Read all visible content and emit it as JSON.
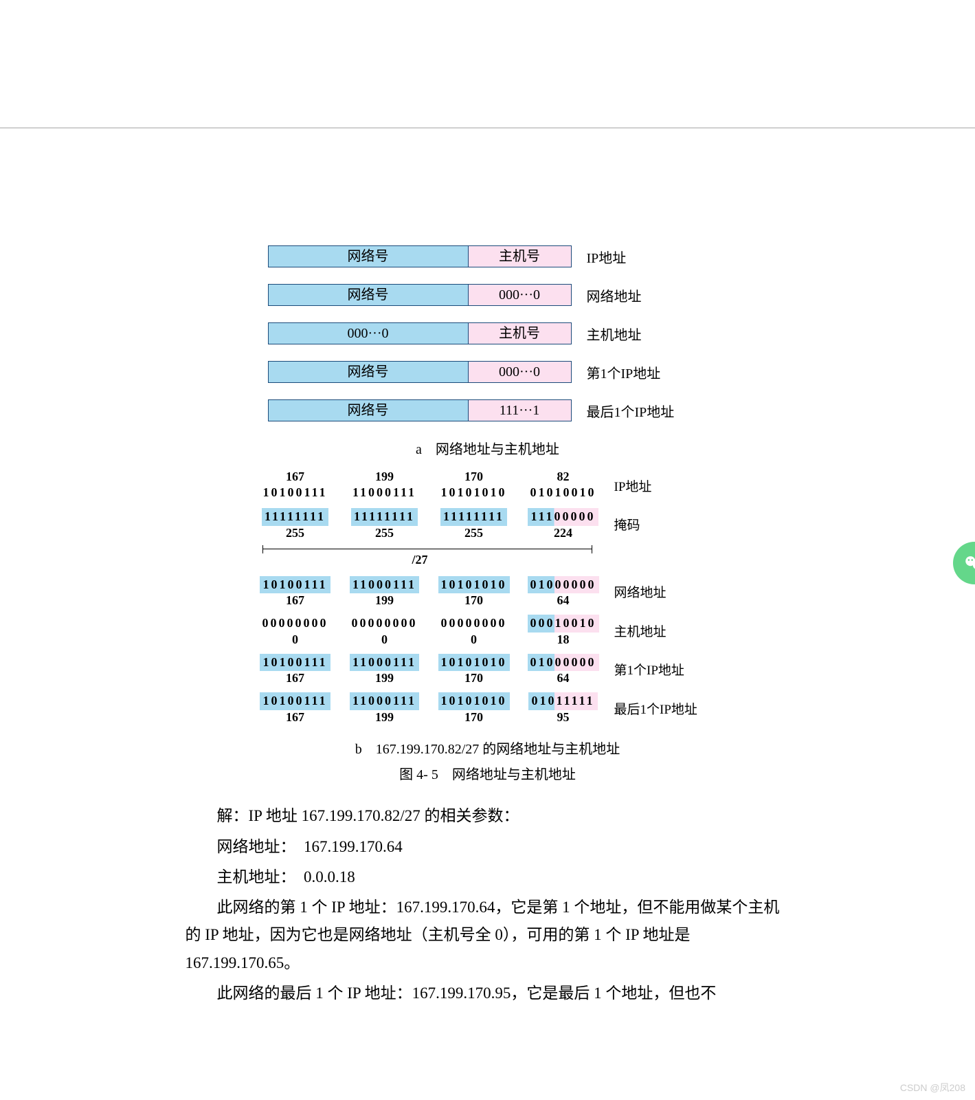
{
  "sectionA": {
    "rows": [
      {
        "left": "网络号",
        "right": "主机号",
        "label": "IP地址",
        "lbg": "blue",
        "rbg": "pink"
      },
      {
        "left": "网络号",
        "right": "000···0",
        "label": "网络地址",
        "lbg": "blue",
        "rbg": "pink"
      },
      {
        "left": "000···0",
        "right": "主机号",
        "label": "主机地址",
        "lbg": "blue",
        "rbg": "pink"
      },
      {
        "left": "网络号",
        "right": "000···0",
        "label": "第1个IP地址",
        "lbg": "blue",
        "rbg": "pink"
      },
      {
        "left": "网络号",
        "right": "111···1",
        "label": "最后1个IP地址",
        "lbg": "blue",
        "rbg": "pink"
      }
    ],
    "caption": "a　网络地址与主机地址"
  },
  "sectionB": {
    "rows": [
      {
        "label": "IP地址",
        "oct": [
          {
            "top": "167",
            "bits": "10100111",
            "bg": ""
          },
          {
            "top": "199",
            "bits": "11000111",
            "bg": ""
          },
          {
            "top": "170",
            "bits": "10101010",
            "bg": ""
          },
          {
            "top": "82",
            "bits": "01010010",
            "bg": ""
          }
        ]
      },
      {
        "label": "掩码",
        "oct": [
          {
            "bits": "11111111",
            "bot": "255",
            "bg": "bg-blue"
          },
          {
            "bits": "11111111",
            "bot": "255",
            "bg": "bg-blue"
          },
          {
            "bits": "11111111",
            "bot": "255",
            "bg": "bg-blue"
          },
          {
            "bits": "11100000",
            "bot": "224",
            "bg": "mask3"
          }
        ],
        "slash": "/27"
      },
      {
        "label": "网络地址",
        "oct": [
          {
            "bits": "10100111",
            "bot": "167",
            "bg": "bg-blue"
          },
          {
            "bits": "11000111",
            "bot": "199",
            "bg": "bg-blue"
          },
          {
            "bits": "10101010",
            "bot": "170",
            "bg": "bg-blue"
          },
          {
            "bits": "01000000",
            "bot": "64",
            "bg": "split3"
          }
        ]
      },
      {
        "label": "主机地址",
        "oct": [
          {
            "bits": "00000000",
            "bot": "0",
            "bg": ""
          },
          {
            "bits": "00000000",
            "bot": "0",
            "bg": ""
          },
          {
            "bits": "00000000",
            "bot": "0",
            "bg": ""
          },
          {
            "bits": "00010010",
            "bot": "18",
            "bg": "split3"
          }
        ]
      },
      {
        "label": "第1个IP地址",
        "oct": [
          {
            "bits": "10100111",
            "bot": "167",
            "bg": "bg-blue"
          },
          {
            "bits": "11000111",
            "bot": "199",
            "bg": "bg-blue"
          },
          {
            "bits": "10101010",
            "bot": "170",
            "bg": "bg-blue"
          },
          {
            "bits": "01000000",
            "bot": "64",
            "bg": "split3"
          }
        ]
      },
      {
        "label": "最后1个IP地址",
        "oct": [
          {
            "bits": "10100111",
            "bot": "167",
            "bg": "bg-blue"
          },
          {
            "bits": "11000111",
            "bot": "199",
            "bg": "bg-blue"
          },
          {
            "bits": "10101010",
            "bot": "170",
            "bg": "bg-blue"
          },
          {
            "bits": "01011111",
            "bot": "95",
            "bg": "split3"
          }
        ]
      }
    ],
    "caption": "b　167.199.170.82/27 的网络地址与主机地址"
  },
  "figcaption": "图 4- 5　网络地址与主机地址",
  "text": {
    "p1": "解：IP 地址 167.199.170.82/27 的相关参数：",
    "p2": "网络地址：　167.199.170.64",
    "p3": "主机地址：　0.0.0.18",
    "p4": "此网络的第 1 个 IP 地址：167.199.170.64，它是第 1 个地址，但不能用做某个主机的 IP 地址，因为它也是网络地址（主机号全 0），可用的第 1 个 IP 地址是 167.199.170.65。",
    "p5": "此网络的最后 1 个 IP 地址：167.199.170.95，它是最后 1 个地址，但也不"
  },
  "watermark": "CSDN @凤208",
  "colors": {
    "blue": "#a8daf0",
    "pink": "#fce0ef",
    "border": "#1a4a7a"
  }
}
